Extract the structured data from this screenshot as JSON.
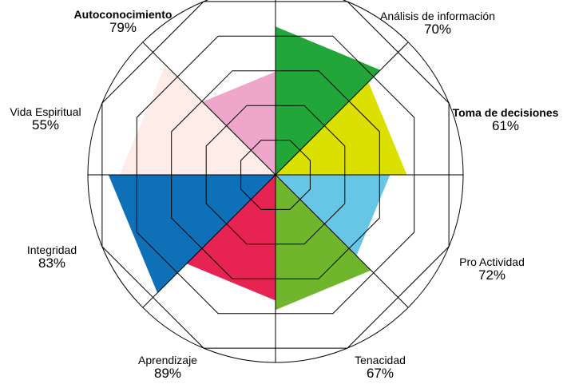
{
  "chart_data": {
    "type": "radar",
    "title": "",
    "max": 100,
    "rings": 5,
    "series": [
      {
        "values": [
          79,
          70,
          61,
          72,
          67,
          89,
          83,
          55
        ]
      }
    ],
    "categories": [
      {
        "name": "Autoconocimiento",
        "value_label": "79%",
        "value": 79,
        "color": "#22a63a",
        "bold": true
      },
      {
        "name": "Análisis de información",
        "value_label": "70%",
        "value": 70,
        "color": "#dce000",
        "bold": false
      },
      {
        "name": "Toma de decisiones",
        "value_label": "61%",
        "value": 61,
        "color": "#67c6e6",
        "bold": true
      },
      {
        "name": "Pro Actividad",
        "value_label": "72%",
        "value": 72,
        "color": "#70b62c",
        "bold": false
      },
      {
        "name": "Tenacidad",
        "value_label": "67%",
        "value": 67,
        "color": "#e62352",
        "bold": false
      },
      {
        "name": "Aprendizaje",
        "value_label": "89%",
        "value": 89,
        "color": "#0e71b8",
        "bold": false
      },
      {
        "name": "Integridad",
        "value_label": "83%",
        "value": 83,
        "color": "#fdece7",
        "bold": false
      },
      {
        "name": "Vida Espiritual",
        "value_label": "55%",
        "value": 55,
        "color": "#efa6cb",
        "bold": false
      }
    ]
  }
}
